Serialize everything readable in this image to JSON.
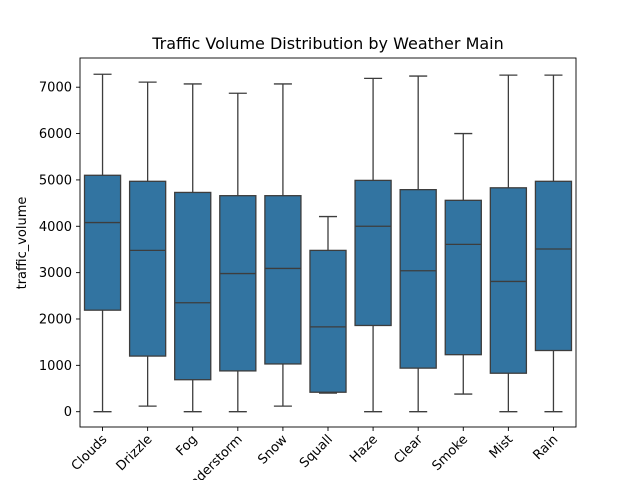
{
  "chart_data": {
    "type": "box",
    "title": "Traffic Volume Distribution by Weather Main",
    "xlabel": "",
    "ylabel": "traffic_volume",
    "ylim": [
      -330,
      7630
    ],
    "yticks": [
      0,
      1000,
      2000,
      3000,
      4000,
      5000,
      6000,
      7000
    ],
    "ytick_labels": [
      "0",
      "1000",
      "2000",
      "3000",
      "4000",
      "5000",
      "6000",
      "7000"
    ],
    "categories": [
      "Clouds",
      "Drizzle",
      "Fog",
      "Thunderstorm",
      "Snow",
      "Squall",
      "Haze",
      "Clear",
      "Smoke",
      "Mist",
      "Rain"
    ],
    "boxes": [
      {
        "whisker_low": 0,
        "q1": 2190,
        "median": 4080,
        "q3": 5100,
        "whisker_high": 7280
      },
      {
        "whisker_low": 120,
        "q1": 1200,
        "median": 3480,
        "q3": 4970,
        "whisker_high": 7110
      },
      {
        "whisker_low": 0,
        "q1": 690,
        "median": 2350,
        "q3": 4730,
        "whisker_high": 7070
      },
      {
        "whisker_low": 0,
        "q1": 880,
        "median": 2980,
        "q3": 4660,
        "whisker_high": 6870
      },
      {
        "whisker_low": 120,
        "q1": 1030,
        "median": 3090,
        "q3": 4660,
        "whisker_high": 7070
      },
      {
        "whisker_low": 400,
        "q1": 420,
        "median": 1830,
        "q3": 3480,
        "whisker_high": 4210
      },
      {
        "whisker_low": 0,
        "q1": 1860,
        "median": 4000,
        "q3": 4990,
        "whisker_high": 7190
      },
      {
        "whisker_low": 0,
        "q1": 940,
        "median": 3040,
        "q3": 4790,
        "whisker_high": 7240
      },
      {
        "whisker_low": 380,
        "q1": 1230,
        "median": 3610,
        "q3": 4560,
        "whisker_high": 6000
      },
      {
        "whisker_low": 0,
        "q1": 830,
        "median": 2810,
        "q3": 4830,
        "whisker_high": 7260
      },
      {
        "whisker_low": 0,
        "q1": 1320,
        "median": 3510,
        "q3": 4970,
        "whisker_high": 7260
      }
    ],
    "grid": false,
    "legend": "none",
    "box_color": "#3274a1",
    "line_color": "#3d3d3d"
  }
}
